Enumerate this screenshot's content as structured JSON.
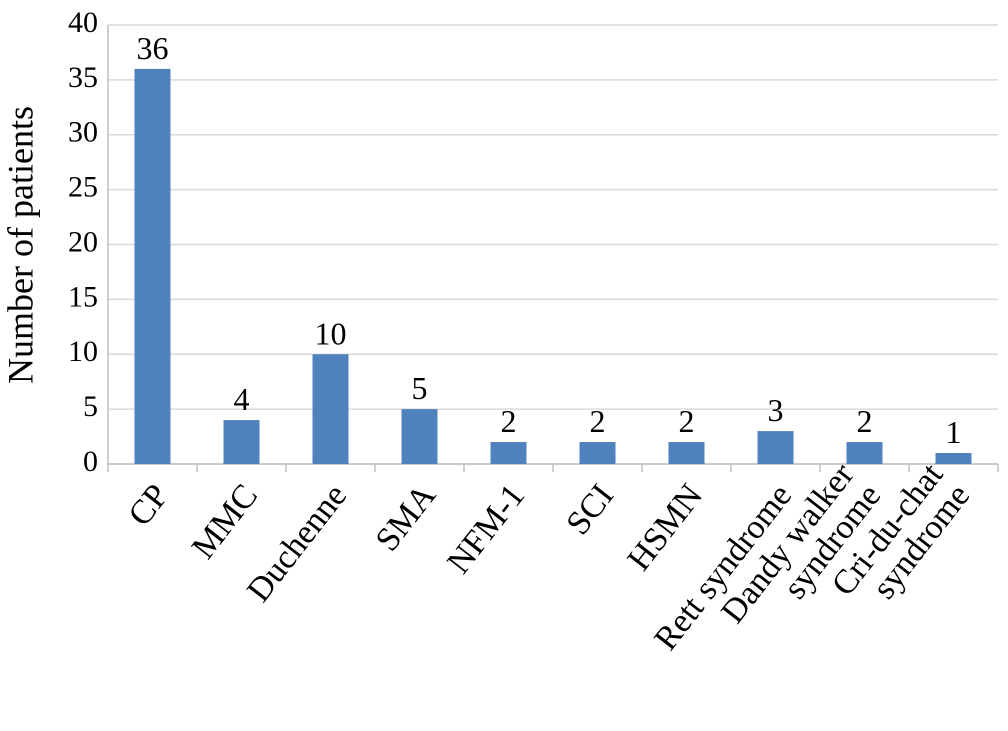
{
  "chart_data": {
    "type": "bar",
    "y_label": "Number of patients",
    "categories": [
      "CP",
      "MMC",
      "Duchenne",
      "SMA",
      "NFM-1",
      "SCI",
      "HSMN",
      "Rett syndrome",
      "Dandy walker\nsyndrome",
      "Cri-du-chat\nsyndrome"
    ],
    "values": [
      36,
      4,
      10,
      5,
      2,
      2,
      2,
      3,
      2,
      1
    ],
    "color": "#4f81bd",
    "ylim": [
      0,
      40
    ],
    "yticks": [
      0,
      5,
      10,
      15,
      20,
      25,
      30,
      35,
      40
    ],
    "grid": true
  }
}
